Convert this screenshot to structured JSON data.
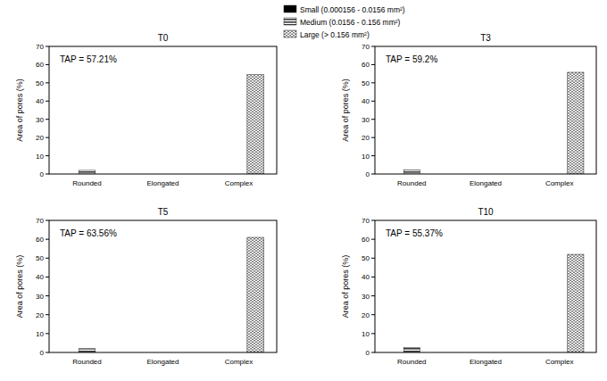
{
  "chart_data": [
    {
      "type": "bar",
      "title": "T0",
      "annotation": "TAP = 57.21%",
      "y_label": "Area of pores (%)",
      "categories": [
        "Rounded",
        "Elongated",
        "Complex"
      ],
      "series": [
        {
          "name": "Small (0.000156 - 0.0156 mm²)",
          "color": "#000000",
          "values": [
            0,
            0,
            0
          ]
        },
        {
          "name": "Medium (0.0156 - 0.156 mm²)",
          "color": "#3a3a3a",
          "values": [
            2,
            0,
            0
          ]
        },
        {
          "name": "Large (> 0.156 mm²)",
          "color": "#7a7a7a",
          "values": [
            0,
            0,
            54.5
          ]
        }
      ],
      "ylim": [
        0,
        70
      ],
      "yticks": [
        0,
        10,
        20,
        30,
        40,
        50,
        60,
        70
      ],
      "legend": "top"
    },
    {
      "type": "bar",
      "title": "T3",
      "annotation": "TAP = 59.2%",
      "y_label": "Area of pores (%)",
      "categories": [
        "Rounded",
        "Elongated",
        "Complex"
      ],
      "series": [
        {
          "color": "#000000",
          "values": [
            0,
            0,
            0
          ]
        },
        {
          "color": "#3a3a3a",
          "values": [
            2.2,
            0,
            0
          ]
        },
        {
          "color": "#7a7a7a",
          "values": [
            0,
            0,
            55.8
          ]
        }
      ],
      "ylim": [
        0,
        70
      ],
      "yticks": [
        0,
        10,
        20,
        30,
        40,
        50,
        60,
        70
      ]
    },
    {
      "type": "bar",
      "title": "T5",
      "annotation": "TAP = 63.56%",
      "y_label": "Area of pores (%)",
      "categories": [
        "Rounded",
        "Elongated",
        "Complex"
      ],
      "series": [
        {
          "color": "#000000",
          "values": [
            0,
            0,
            0
          ]
        },
        {
          "color": "#3a3a3a",
          "values": [
            2,
            0,
            0
          ]
        },
        {
          "color": "#7a7a7a",
          "values": [
            0,
            0,
            61
          ]
        }
      ],
      "ylim": [
        0,
        70
      ],
      "yticks": [
        0,
        10,
        20,
        30,
        40,
        50,
        60,
        70
      ]
    },
    {
      "type": "bar",
      "title": "T10",
      "annotation": "TAP = 55.37%",
      "y_label": "Area of pores (%)",
      "categories": [
        "Rounded",
        "Elongated",
        "Complex"
      ],
      "series": [
        {
          "color": "#000000",
          "values": [
            0,
            0,
            0
          ]
        },
        {
          "color": "#3a3a3a",
          "values": [
            2.5,
            0,
            0
          ]
        },
        {
          "color": "#7a7a7a",
          "values": [
            0,
            0,
            52
          ]
        }
      ],
      "ylim": [
        0,
        70
      ],
      "yticks": [
        0,
        10,
        20,
        30,
        40,
        50,
        60,
        70
      ]
    }
  ]
}
